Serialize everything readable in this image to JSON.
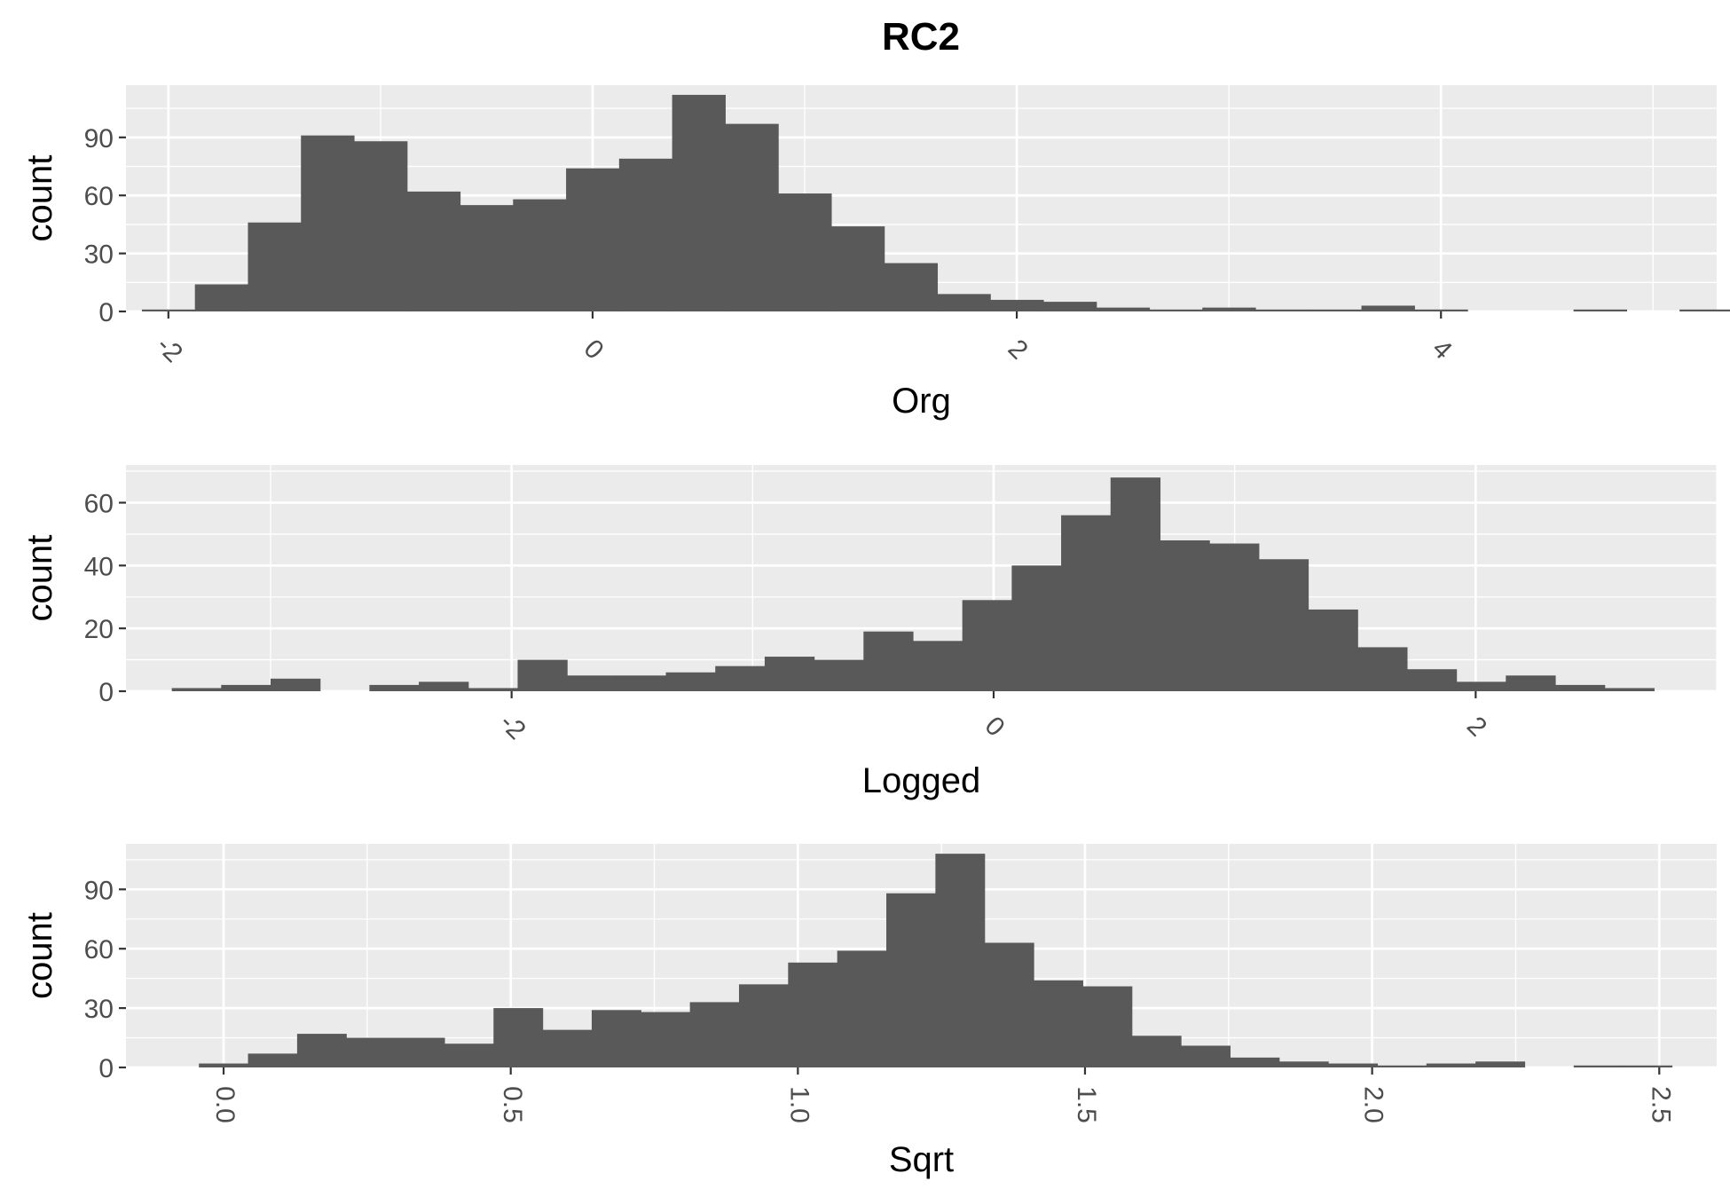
{
  "title": "RC2",
  "colors": {
    "panel_background": "#EBEBEB",
    "grid": "#FFFFFF",
    "bar_fill": "#595959",
    "axis_text": "#4D4D4D",
    "title_text": "#000000"
  },
  "chart_data": [
    {
      "type": "bar",
      "subtype": "histogram",
      "xlabel": "Org",
      "ylabel": "count",
      "xlim": [
        -2.2,
        5.3
      ],
      "ylim": [
        0,
        117
      ],
      "x_ticks": [
        -2,
        0,
        2,
        4
      ],
      "x_tick_labels": [
        "-2",
        "0",
        "2",
        "4"
      ],
      "x_tick_angle": 45,
      "y_ticks": [
        0,
        30,
        60,
        90
      ],
      "y_tick_labels": [
        "0",
        "30",
        "60",
        "90"
      ],
      "grid": true,
      "bin_start": -2.125,
      "bin_width": 0.25,
      "values": [
        1,
        14,
        46,
        91,
        88,
        62,
        55,
        58,
        74,
        79,
        112,
        97,
        61,
        44,
        25,
        9,
        6,
        5,
        2,
        1,
        2,
        1,
        1,
        3,
        1,
        0,
        0,
        1,
        0,
        1
      ]
    },
    {
      "type": "bar",
      "subtype": "histogram",
      "xlabel": "Logged",
      "ylabel": "count",
      "xlim": [
        -3.6,
        3.0
      ],
      "ylim": [
        0,
        72
      ],
      "x_ticks": [
        -2,
        0,
        2
      ],
      "x_tick_labels": [
        "-2",
        "0",
        "2"
      ],
      "x_tick_angle": 45,
      "y_ticks": [
        0,
        20,
        40,
        60
      ],
      "y_tick_labels": [
        "0",
        "20",
        "40",
        "60"
      ],
      "grid": true,
      "bin_start": -3.41,
      "bin_width": 0.205,
      "values": [
        1,
        2,
        4,
        0,
        2,
        3,
        1,
        10,
        5,
        5,
        6,
        8,
        11,
        10,
        19,
        16,
        29,
        40,
        56,
        68,
        48,
        47,
        42,
        26,
        14,
        7,
        3,
        5,
        2,
        1
      ]
    },
    {
      "type": "bar",
      "subtype": "histogram",
      "xlabel": "Sqrt",
      "ylabel": "count",
      "xlim": [
        -0.17,
        2.6
      ],
      "ylim": [
        0,
        113
      ],
      "x_ticks": [
        0.0,
        0.5,
        1.0,
        1.5,
        2.0,
        2.5
      ],
      "x_tick_labels": [
        "0.0",
        "0.5",
        "1.0",
        "1.5",
        "2.0",
        "2.5"
      ],
      "x_tick_angle": 90,
      "y_ticks": [
        0,
        30,
        60,
        90
      ],
      "y_tick_labels": [
        "0",
        "30",
        "60",
        "90"
      ],
      "grid": true,
      "bin_start": -0.043,
      "bin_width": 0.0855,
      "values": [
        2,
        7,
        17,
        15,
        15,
        12,
        30,
        19,
        29,
        28,
        33,
        42,
        53,
        59,
        88,
        108,
        63,
        44,
        41,
        16,
        11,
        5,
        3,
        2,
        1,
        2,
        3,
        0,
        1,
        1
      ]
    }
  ]
}
